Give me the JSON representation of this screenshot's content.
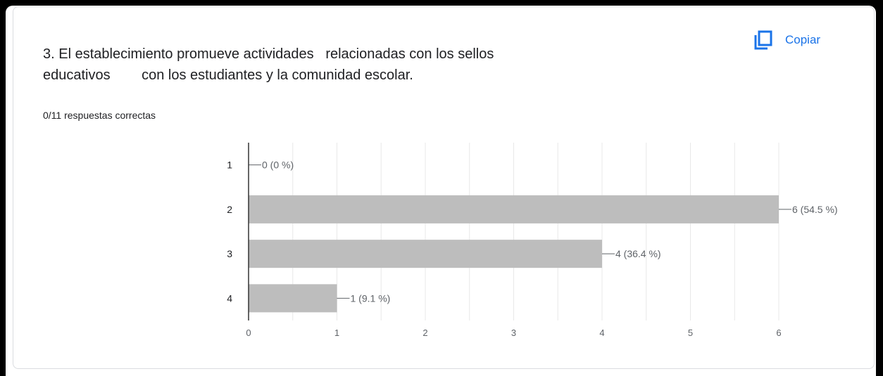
{
  "question": {
    "text": "3. El establecimiento promueve actividades   relacionadas con los sellos\neducativos        con los estudiantes y la comunidad escolar."
  },
  "copy_button": {
    "label": "Copiar",
    "icon": "copy-icon"
  },
  "summary": "0/11 respuestas correctas",
  "colors": {
    "bar": "#bdbdbd",
    "accent": "#1a73e8",
    "text": "#202124",
    "axis_label": "#5f6368",
    "grid": "#e8e8e8"
  },
  "chart_data": {
    "type": "bar",
    "orientation": "horizontal",
    "categories": [
      "1",
      "2",
      "3",
      "4"
    ],
    "values": [
      0,
      6,
      4,
      1
    ],
    "data_labels": [
      "0 (0 %)",
      "6 (54.5 %)",
      "4 (36.4 %)",
      "1 (9.1 %)"
    ],
    "xlim": [
      0,
      6
    ],
    "xticks": [
      0,
      1,
      2,
      3,
      4,
      5,
      6
    ],
    "grid": true,
    "title": "",
    "xlabel": "",
    "ylabel": ""
  }
}
